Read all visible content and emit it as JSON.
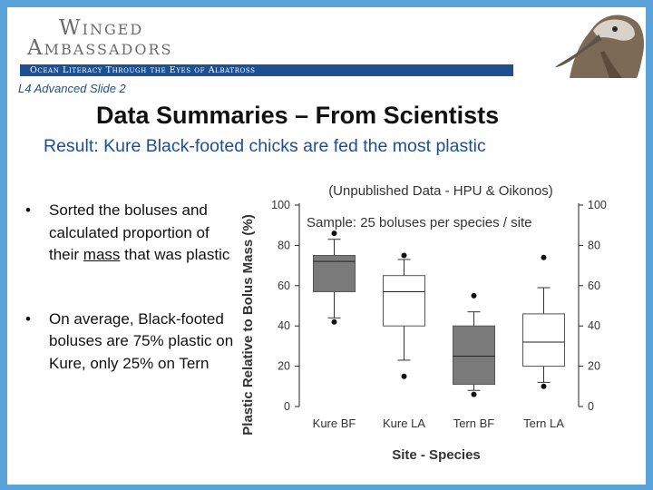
{
  "header": {
    "logo_line1": "Winged",
    "logo_line2": "Ambassadors",
    "tagline": "Ocean Literacy Through the Eyes of Albatross",
    "mascot_icon": "albatross-icon"
  },
  "slide": {
    "label": "L4 Advanced Slide 2",
    "title": "Data Summaries – From Scientists",
    "subtitle": "Result:  Kure Black-footed chicks are fed the most plastic",
    "bullet_symbol": "•",
    "bullets": [
      {
        "pre": "Sorted the boluses and calculated proportion of their ",
        "underlined": "mass",
        "post": " that was plastic"
      },
      {
        "pre": "On average, Black-footed boluses are 75% plastic on Kure, only 25% on Tern",
        "underlined": "",
        "post": ""
      }
    ]
  },
  "colors": {
    "background": "#5aa3d8",
    "banner": "#1d4f91",
    "accent_text": "#1d4f91",
    "box_gray": "#7a7a7a",
    "box_white": "#ffffff"
  },
  "chart_data": {
    "type": "boxplot",
    "title": "(Unpublished Data - HPU & Oikonos)",
    "annotation": "Sample:  25 boluses per species / site",
    "xlabel": "Site - Species",
    "ylabel": "Plastic Relative to Bolus Mass (%)",
    "ylim": [
      0,
      100
    ],
    "yticks": [
      0,
      20,
      40,
      60,
      80,
      100
    ],
    "right_axis_ticks": true,
    "categories": [
      "Kure BF",
      "Kure LA",
      "Tern BF",
      "Tern LA"
    ],
    "boxes": [
      {
        "category": "Kure BF",
        "whisker_low": 44,
        "q1": 57,
        "median": 72,
        "q3": 75,
        "whisker_high": 83,
        "outliers": [
          86,
          42
        ],
        "fill": "gray"
      },
      {
        "category": "Kure LA",
        "whisker_low": 23,
        "q1": 40,
        "median": 57,
        "q3": 65,
        "whisker_high": 73,
        "outliers": [
          75,
          15
        ],
        "fill": "white"
      },
      {
        "category": "Tern BF",
        "whisker_low": 8,
        "q1": 11,
        "median": 25,
        "q3": 40,
        "whisker_high": 47,
        "outliers": [
          55,
          6
        ],
        "fill": "gray"
      },
      {
        "category": "Tern LA",
        "whisker_low": 12,
        "q1": 20,
        "median": 32,
        "q3": 46,
        "whisker_high": 59,
        "outliers": [
          74,
          10
        ],
        "fill": "white"
      }
    ]
  }
}
